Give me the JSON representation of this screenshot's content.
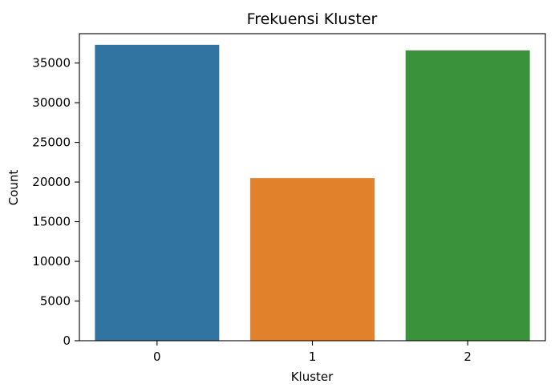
{
  "chart_data": {
    "type": "bar",
    "title": "Frekuensi Kluster",
    "xlabel": "Kluster",
    "ylabel": "Count",
    "categories": [
      "0",
      "1",
      "2"
    ],
    "values": [
      37300,
      20500,
      36600
    ],
    "colors": [
      "#3274a1",
      "#e1812c",
      "#3a923a"
    ],
    "ylim": [
      0,
      38700
    ],
    "yticks": [
      0,
      5000,
      10000,
      15000,
      20000,
      25000,
      30000,
      35000
    ],
    "grid": false,
    "legend": "none"
  }
}
